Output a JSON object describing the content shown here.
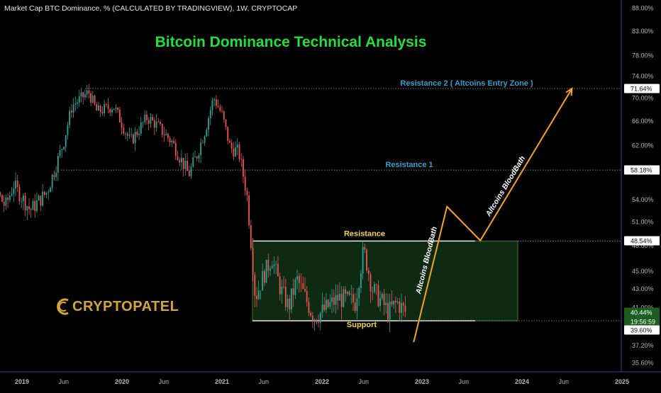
{
  "header": {
    "symbol_line": "Market Cap BTC Dominance, % (CALCULATED BY TRADINGVIEW), 1W, CRYPTOCAP"
  },
  "branding": {
    "logo_text": "CRYPTOPATEL"
  },
  "colors": {
    "background": "#000000",
    "up_candle": "#26a69a",
    "down_candle": "#ef5350",
    "title": "#22e03a",
    "resistance_label": "#2e9fd1",
    "box_label": "#f0d54a",
    "arrow": "#f7a21b",
    "box_fill": "#0f2a12",
    "highlight_label_bg": "#1b5e20"
  },
  "chart_data": {
    "type": "candlestick",
    "title": "Bitcoin Dominance Technical Analysis",
    "xlabel": "",
    "ylabel": "",
    "x_ticks": [
      "2019",
      "Jun",
      "2020",
      "Jun",
      "2021",
      "Jun",
      "2022",
      "Jun",
      "2023",
      "Jun",
      "2024",
      "Jun",
      "2025"
    ],
    "y_ticks": [
      "88.00%",
      "83.00%",
      "78.00%",
      "74.00%",
      "70.00%",
      "66.00%",
      "62.00%",
      "58.00%",
      "54.00%",
      "51.00%",
      "48.00%",
      "45.00%",
      "43.00%",
      "41.00%",
      "37.20%",
      "35.60%"
    ],
    "price_tags": [
      {
        "label": "71.64%",
        "value": 71.64,
        "style": "white"
      },
      {
        "label": "58.18%",
        "value": 58.18,
        "style": "white"
      },
      {
        "label": "48.54%",
        "value": 48.54,
        "style": "white"
      },
      {
        "label": "40.44%",
        "value": 40.44,
        "style": "green"
      },
      {
        "label": "19:56:59",
        "value": 39.9,
        "style": "green"
      },
      {
        "label": "39.60%",
        "value": 39.6,
        "style": "white"
      }
    ],
    "levels": [
      {
        "name": "Resistance 2 ( Altcoins Entry Zone )",
        "value": 71.64
      },
      {
        "name": "Resistance 1",
        "value": 58.18
      },
      {
        "name": "Resistance",
        "value": 48.54
      },
      {
        "name": "Support",
        "value": 39.6
      }
    ],
    "annotations": [
      "Altcoins BloodBath",
      "Altcoins BloodBath"
    ],
    "range_box": {
      "from": "2021-05",
      "to": "2023-12",
      "low": 39.6,
      "high": 48.54
    },
    "projection_path": [
      {
        "date": "2022-12",
        "value": 37.5
      },
      {
        "date": "2023-04",
        "value": 53.0
      },
      {
        "date": "2023-08",
        "value": 48.6
      },
      {
        "date": "2024-07",
        "value": 71.64
      }
    ],
    "series": [
      {
        "interval": "1W",
        "waypoints": [
          {
            "date": "2018-09",
            "value": 57.0
          },
          {
            "date": "2018-11",
            "value": 53.0
          },
          {
            "date": "2018-12",
            "value": 56.0
          },
          {
            "date": "2019-02",
            "value": 52.5
          },
          {
            "date": "2019-04",
            "value": 55.0
          },
          {
            "date": "2019-05",
            "value": 58.5
          },
          {
            "date": "2019-06",
            "value": 62.5
          },
          {
            "date": "2019-07",
            "value": 68.5
          },
          {
            "date": "2019-09",
            "value": 71.0
          },
          {
            "date": "2019-10",
            "value": 67.5
          },
          {
            "date": "2019-12",
            "value": 68.5
          },
          {
            "date": "2020-02",
            "value": 62.5
          },
          {
            "date": "2020-03",
            "value": 64.5
          },
          {
            "date": "2020-04",
            "value": 66.5
          },
          {
            "date": "2020-05",
            "value": 65.5
          },
          {
            "date": "2020-07",
            "value": 62.5
          },
          {
            "date": "2020-09",
            "value": 57.5
          },
          {
            "date": "2020-10",
            "value": 60.5
          },
          {
            "date": "2020-11",
            "value": 64.5
          },
          {
            "date": "2020-12",
            "value": 70.0
          },
          {
            "date": "2021-01",
            "value": 67.0
          },
          {
            "date": "2021-02",
            "value": 61.5
          },
          {
            "date": "2021-03",
            "value": 61.0
          },
          {
            "date": "2021-04",
            "value": 54.5
          },
          {
            "date": "2021-05",
            "value": 42.0
          },
          {
            "date": "2021-06",
            "value": 44.5
          },
          {
            "date": "2021-07",
            "value": 46.5
          },
          {
            "date": "2021-08",
            "value": 43.0
          },
          {
            "date": "2021-09",
            "value": 41.0
          },
          {
            "date": "2021-10",
            "value": 44.0
          },
          {
            "date": "2021-12",
            "value": 40.0
          },
          {
            "date": "2022-01",
            "value": 40.5
          },
          {
            "date": "2022-03",
            "value": 42.0
          },
          {
            "date": "2022-05",
            "value": 41.5
          },
          {
            "date": "2022-06",
            "value": 47.5
          },
          {
            "date": "2022-07",
            "value": 43.0
          },
          {
            "date": "2022-09",
            "value": 40.5
          },
          {
            "date": "2022-10",
            "value": 41.5
          },
          {
            "date": "2022-11",
            "value": 40.5
          }
        ]
      }
    ],
    "grid": false,
    "scale": "log"
  }
}
